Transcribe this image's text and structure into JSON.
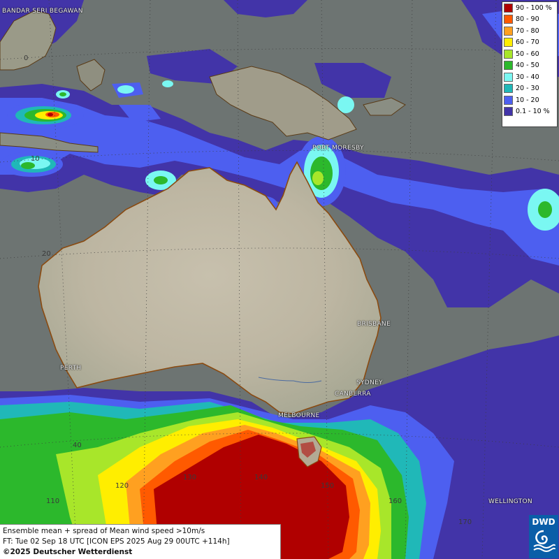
{
  "legend": {
    "entries": [
      {
        "label": "90 - 100 %",
        "color": "#b00000"
      },
      {
        "label": "80 - 90",
        "color": "#ff5a00"
      },
      {
        "label": "70 - 80",
        "color": "#ffa020"
      },
      {
        "label": "60 - 70",
        "color": "#ffee00"
      },
      {
        "label": "50 - 60",
        "color": "#a8e62a"
      },
      {
        "label": "40 - 50",
        "color": "#2cb82c"
      },
      {
        "label": "30 - 40",
        "color": "#7af7f2"
      },
      {
        "label": "20 - 30",
        "color": "#20b8b8"
      },
      {
        "label": "10 - 20",
        "color": "#4d5ff0"
      },
      {
        "label": "0.1 - 10 %",
        "color": "#4234a8"
      }
    ]
  },
  "cities": {
    "bandar": "BANDAR SERI BEGAWAN",
    "port_moresby": "PORT MORESBY",
    "brisbane": "BRISBANE",
    "perth": "PERTH",
    "sydney": "SYDNEY",
    "canberra": "CANBERRA",
    "melbourne": "MELBOURNE",
    "wellington": "WELLINGTON"
  },
  "grid_labels": {
    "lat_0": "0",
    "lat_10": "10",
    "lat_20": "20",
    "lat_40": "40",
    "lon_110": "110",
    "lon_120": "120",
    "lon_130": "130",
    "lon_140": "140",
    "lon_150": "150",
    "lon_160": "160",
    "lon_170": "170"
  },
  "info": {
    "line1": "Ensemble mean + spread of Mean wind speed >10m/s",
    "line2": "FT: Tue 02 Sep 18 UTC [ICON EPS 2025 Aug 29 00UTC +114h]",
    "line3": "©2025 Deutscher Wetterdienst"
  },
  "logo": {
    "text": "DWD",
    "color": "#0a5ea8"
  }
}
